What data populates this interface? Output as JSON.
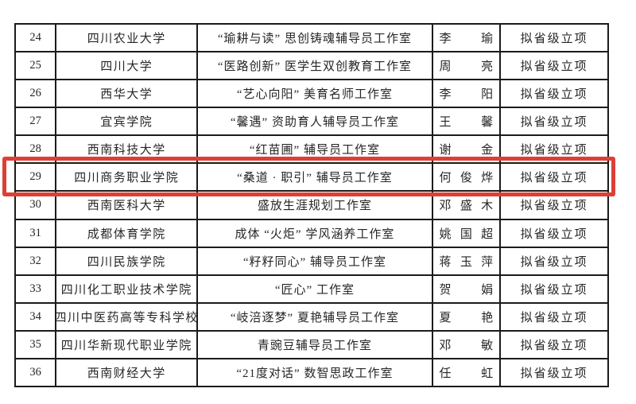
{
  "table": {
    "rows": [
      {
        "no": "24",
        "university": "四川农业大学",
        "workshop": "“瑜耕与读” 思创铸魂辅导员工作室",
        "name": [
          "李",
          "瑜"
        ],
        "status": "拟省级立项"
      },
      {
        "no": "25",
        "university": "四川大学",
        "workshop": "“医路创新” 医学生双创教育工作室",
        "name": [
          "周",
          "亮"
        ],
        "status": "拟省级立项"
      },
      {
        "no": "26",
        "university": "西华大学",
        "workshop": "“艺心向阳” 美育名师工作室",
        "name": [
          "李",
          "阳"
        ],
        "status": "拟省级立项"
      },
      {
        "no": "27",
        "university": "宜宾学院",
        "workshop": "“馨遇” 资助育人辅导员工作室",
        "name": [
          "王",
          "馨"
        ],
        "status": "拟省级立项"
      },
      {
        "no": "28",
        "university": "西南科技大学",
        "workshop": "“红苗圃” 辅导员工作室",
        "name": [
          "谢",
          "金"
        ],
        "status": "拟省级立项"
      },
      {
        "no": "29",
        "university": "四川商务职业学院",
        "workshop": "“桑道 · 职引” 辅导员工作室",
        "name": [
          "何",
          "俊",
          "烨"
        ],
        "status": "拟省级立项",
        "highlighted": true
      },
      {
        "no": "30",
        "university": "西南医科大学",
        "workshop": "盛放生涯规划工作室",
        "name": [
          "邓",
          "盛",
          "木"
        ],
        "status": "拟省级立项"
      },
      {
        "no": "31",
        "university": "成都体育学院",
        "workshop": "成体 “火炬” 学风涵养工作室",
        "name": [
          "姚",
          "国",
          "超"
        ],
        "status": "拟省级立项"
      },
      {
        "no": "32",
        "university": "四川民族学院",
        "workshop": "“籽籽同心” 辅导员工作室",
        "name": [
          "蒋",
          "玉",
          "萍"
        ],
        "status": "拟省级立项"
      },
      {
        "no": "33",
        "university": "四川化工职业技术学院",
        "workshop": "“匠心” 工作室",
        "name": [
          "贺",
          "娟"
        ],
        "status": "拟省级立项"
      },
      {
        "no": "34",
        "university": "四川中医药高等专科学校",
        "workshop": "“岐涪逐梦” 夏艳辅导员工作室",
        "name": [
          "夏",
          "艳"
        ],
        "status": "拟省级立项"
      },
      {
        "no": "35",
        "university": "四川华新现代职业学院",
        "workshop": "青豌豆辅导员工作室",
        "name": [
          "邓",
          "敏"
        ],
        "status": "拟省级立项"
      },
      {
        "no": "36",
        "university": "西南财经大学",
        "workshop": "“21度对话” 数智思政工作室",
        "name": [
          "任",
          "虹"
        ],
        "status": "拟省级立项"
      }
    ]
  },
  "highlight": {
    "row_no": "29",
    "color": "#dc4035"
  },
  "colors": {
    "grid_line": "#1b1b1b",
    "text": "#262626",
    "background": "#ffffff"
  }
}
